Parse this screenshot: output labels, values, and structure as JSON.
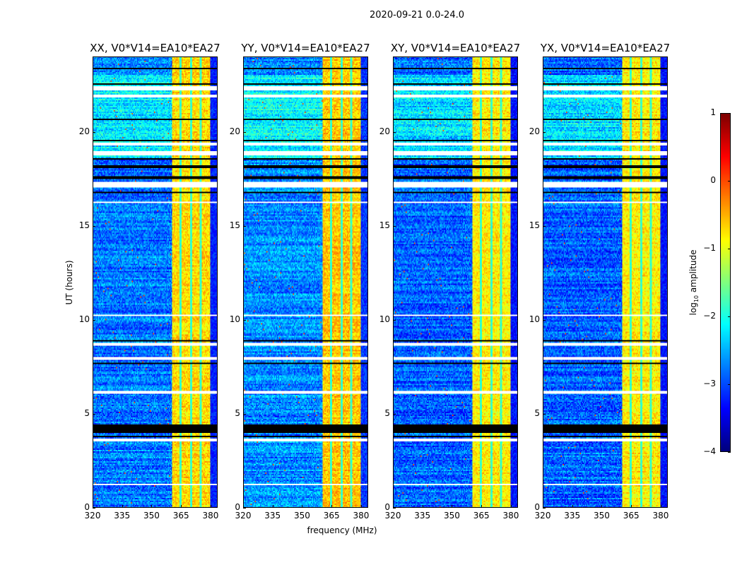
{
  "figure": {
    "suptitle": "2020-09-21 0.0-24.0",
    "xlabel": "frequency (MHz)",
    "ylabel": "UT (hours)"
  },
  "colorbar": {
    "label_main": "log",
    "label_sub": "10",
    "label_tail": " amplitude",
    "colormap": "jet",
    "range": [
      -4,
      1
    ],
    "ticks": [
      1,
      0,
      -1,
      -2,
      -3,
      -4
    ],
    "tick_labels": [
      "1",
      "0",
      "−1",
      "−2",
      "−3",
      "−4"
    ]
  },
  "chart_data": {
    "type": "heatmap",
    "title": "2020-09-21 0.0-24.0",
    "xlabel": "frequency (MHz)",
    "ylabel": "UT (hours)",
    "value_label": "log10 amplitude",
    "xlim": [
      320,
      383.6
    ],
    "ylim": [
      0,
      24
    ],
    "xticks": [
      320,
      335,
      350,
      365,
      380
    ],
    "yticks": [
      0,
      5,
      10,
      15,
      20
    ],
    "clim": [
      -4,
      1
    ],
    "panels": [
      {
        "title": "XX, V0*V14=EA10*EA27",
        "band_level": -0.7,
        "background_level": -2.8
      },
      {
        "title": "YY, V0*V14=EA10*EA27",
        "band_level": -0.6,
        "background_level": -2.7
      },
      {
        "title": "XY, V0*V14=EA10*EA27",
        "band_level": -0.8,
        "background_level": -2.9
      },
      {
        "title": "YX, V0*V14=EA10*EA27",
        "band_level": -0.8,
        "background_level": -2.9
      }
    ],
    "strong_band_mhz": [
      360.2,
      379.6
    ],
    "band_gaps_mhz": [
      364.6,
      370.0,
      375.0
    ],
    "flagged_hours": [
      [
        22.2,
        22.4
      ],
      [
        21.85,
        21.95
      ],
      [
        19.25,
        19.4
      ],
      [
        18.75,
        19.0
      ],
      [
        17.0,
        17.35
      ],
      [
        8.6,
        8.8
      ],
      [
        7.85,
        8.0
      ],
      [
        6.1,
        6.2
      ],
      [
        3.55,
        3.7
      ],
      [
        16.2,
        16.25
      ],
      [
        15.2,
        15.25
      ],
      [
        14.6,
        14.65
      ],
      [
        12.5,
        12.55
      ],
      [
        11.0,
        11.05
      ],
      [
        10.2,
        10.25
      ],
      [
        9.5,
        9.55
      ],
      [
        2.0,
        2.05
      ],
      [
        1.2,
        1.25
      ]
    ],
    "dead_hours": [
      [
        23.3,
        23.4
      ],
      [
        22.5,
        22.6
      ],
      [
        20.6,
        20.7
      ],
      [
        19.5,
        19.6
      ],
      [
        18.5,
        18.6
      ],
      [
        18.1,
        18.2
      ],
      [
        17.45,
        17.6
      ],
      [
        16.75,
        16.8
      ],
      [
        8.85,
        8.95
      ],
      [
        7.65,
        7.75
      ],
      [
        4.0,
        4.45
      ],
      [
        3.75,
        3.8
      ]
    ],
    "bright_hours": [
      [
        18.5,
        23.0
      ]
    ]
  }
}
